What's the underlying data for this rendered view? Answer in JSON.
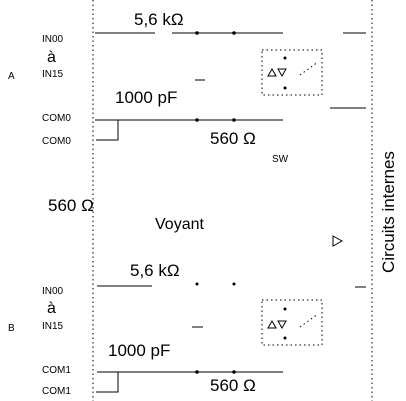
{
  "blocks": [
    {
      "label": "A",
      "in_first": "IN00",
      "to": "à",
      "in_last": "IN15",
      "resistor": "5,6 kΩ",
      "capacitor": "1000 pF",
      "com_top": "COM0",
      "com_bottom": "COM0",
      "com_resistor": "560 Ω"
    },
    {
      "label": "B",
      "in_first": "IN00",
      "to": "à",
      "in_last": "IN15",
      "resistor": "5,6 kΩ",
      "capacitor": "1000 pF",
      "com_top": "COM1",
      "com_bottom": "COM1",
      "com_resistor": "560 Ω"
    }
  ],
  "switch_label": "SW",
  "led_resistor": "560 Ω",
  "led_label": "Voyant",
  "internal_label": "Circuits internes"
}
